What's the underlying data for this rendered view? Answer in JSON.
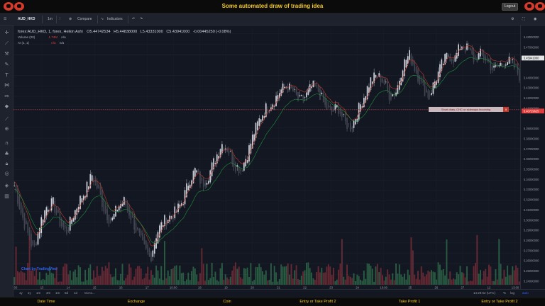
{
  "header": {
    "title": "Some automated draw of trading idea",
    "logout_label": "Logout",
    "brand_color": "#d63a2b",
    "title_color": "#f5c928"
  },
  "toolbar": {
    "symbol": "AUD_HKD",
    "interval": "1m",
    "compare_label": "Compare",
    "indicators_label": "Indicators"
  },
  "legend": {
    "main": "forex:AUD_HKD, 1, forex, Heikin Ashi",
    "o": "O5.44742534",
    "h": "H5.44838000",
    "l": "L5.43331000",
    "c": "C5.43941000",
    "chg": "-0.00445250 (-0.08%)",
    "volume_label": "Volume (20)",
    "volume_value": "1.74M",
    "volume_ma": "n/a",
    "ai_label": "AI (1, 1)",
    "ai_value1": "n/a",
    "ai_value2": "n/a"
  },
  "annotation": {
    "text": "Short draw, CHC or sideways incoming",
    "close_label": "x",
    "price_tag": "5.40729625"
  },
  "watermark": "Chart by TradingView",
  "bottom": {
    "ranges": [
      "1y",
      "1y",
      "1m",
      "3m",
      "1m",
      "5d",
      "1d"
    ],
    "goto": "Go to...",
    "clock": "14:28:52 (UTC)",
    "pct": "%",
    "log": "log",
    "auto": "auto"
  },
  "footer": {
    "items": [
      "Date Time",
      "Exchange",
      "Coin",
      "Entry or Take Profit 2",
      "Take Profit 1",
      "Entry or Take Profit 2"
    ]
  },
  "chart_data": {
    "type": "candlestick",
    "chart_style": "Heikin Ashi",
    "y_axis_ticks": [
      "5.48000000",
      "5.47000000",
      "5.46000000",
      "5.45941000",
      "5.44000000",
      "5.43000000",
      "5.42000000",
      "5.41000000",
      "5.40729625",
      "5.39000000",
      "5.38000000",
      "5.37000000",
      "5.36000000",
      "5.35000000",
      "5.34000000",
      "5.33000000",
      "5.32000000",
      "5.31000000",
      "5.30000000",
      "5.29000000",
      "5.28000000",
      "5.27000000",
      "5.26000000",
      "5.25000000",
      "5.24000000"
    ],
    "y_axis_range": [
      5.24,
      5.485
    ],
    "highlight_price": "5.45941000",
    "x_axis_ticks": [
      "00",
      "13",
      "14",
      "15",
      "16",
      "17",
      "10:00",
      "18",
      "19",
      "20",
      "21",
      "22",
      "23",
      "24",
      "10:00",
      "25",
      "26",
      "27",
      "12",
      "13:00"
    ],
    "close_path": [
      5.335,
      5.31,
      5.29,
      5.272,
      5.3,
      5.315,
      5.318,
      5.3,
      5.29,
      5.305,
      5.32,
      5.33,
      5.345,
      5.33,
      5.31,
      5.3,
      5.315,
      5.32,
      5.305,
      5.29,
      5.275,
      5.265,
      5.29,
      5.3,
      5.305,
      5.31,
      5.32,
      5.34,
      5.35,
      5.335,
      5.345,
      5.36,
      5.375,
      5.37,
      5.355,
      5.35,
      5.365,
      5.385,
      5.4,
      5.41,
      5.415,
      5.425,
      5.43,
      5.425,
      5.415,
      5.42,
      5.43,
      5.425,
      5.41,
      5.405,
      5.41,
      5.395,
      5.39,
      5.405,
      5.42,
      5.435,
      5.44,
      5.435,
      5.42,
      5.425,
      5.45,
      5.46,
      5.445,
      5.43,
      5.42,
      5.435,
      5.45,
      5.46,
      5.455,
      5.47,
      5.465,
      5.455,
      5.46,
      5.455,
      5.445,
      5.45,
      5.455,
      5.45,
      5.44
    ],
    "colors": {
      "up": "#d1d4dc",
      "down": "#434651",
      "ema_fast": "#c0392b",
      "ema_slow": "#1e8f3c",
      "vol_up": "#2f6e4b",
      "vol_down": "#7a2e3a",
      "price_line": "#e23b3b"
    }
  }
}
